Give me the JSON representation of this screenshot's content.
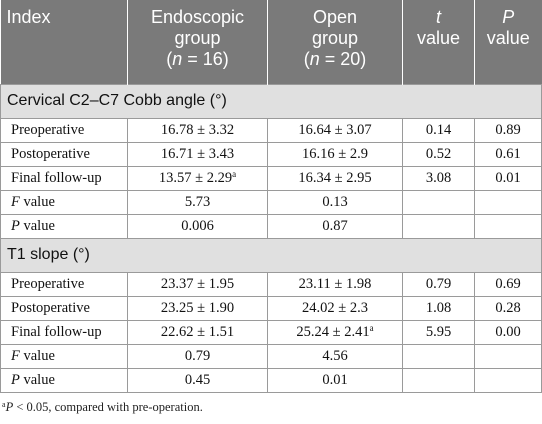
{
  "header": {
    "index": "Index",
    "endoscopic": {
      "line1": "Endoscopic",
      "line2": "group",
      "n_open": "(",
      "n_var": "n",
      "n_val": " = 16)"
    },
    "open": {
      "line1": "Open",
      "line2": "group",
      "n_open": "(",
      "n_var": "n",
      "n_val": " = 20)"
    },
    "t": {
      "var": "t",
      "line2": "value"
    },
    "p": {
      "var": "P",
      "line2": "value"
    }
  },
  "sections": [
    {
      "title": "Cervical C2–C7 Cobb angle (°)",
      "rows": [
        {
          "label": "Preoperative",
          "endo": "16.78 ± 3.32",
          "open": "16.64 ± 3.07",
          "t": "0.14",
          "p": "0.89"
        },
        {
          "label": "Postoperative",
          "endo": "16.71 ± 3.43",
          "open": "16.16 ± 2.9",
          "t": "0.52",
          "p": "0.61"
        },
        {
          "label": "Final follow-up",
          "endo": "13.57 ± 2.29",
          "endo_sup": "a",
          "open": "16.34 ± 2.95",
          "t": "3.08",
          "p": "0.01"
        }
      ],
      "stats": [
        {
          "var": "F",
          "suffix": " value",
          "endo": "5.73",
          "open": "0.13"
        },
        {
          "var": "P",
          "suffix": " value",
          "endo": "0.006",
          "open": "0.87"
        }
      ]
    },
    {
      "title": "T1 slope (°)",
      "rows": [
        {
          "label": "Preoperative",
          "endo": "23.37 ± 1.95",
          "open": "23.11 ± 1.98",
          "t": "0.79",
          "p": "0.69"
        },
        {
          "label": "Postoperative",
          "endo": "23.25 ± 1.90",
          "open": "24.02 ± 2.3",
          "t": "1.08",
          "p": "0.28"
        },
        {
          "label": "Final follow-up",
          "endo": "22.62 ± 1.51",
          "open": "25.24 ± 2.41",
          "open_sup": "a",
          "t": "5.95",
          "p": "0.00"
        }
      ],
      "stats": [
        {
          "var": "F",
          "suffix": " value",
          "endo": "0.79",
          "open": "4.56"
        },
        {
          "var": "P",
          "suffix": " value",
          "endo": "0.45",
          "open": "0.01"
        }
      ]
    }
  ],
  "footnote": {
    "sup": "a",
    "var": "P",
    "text": " < 0.05, compared with pre-operation."
  }
}
